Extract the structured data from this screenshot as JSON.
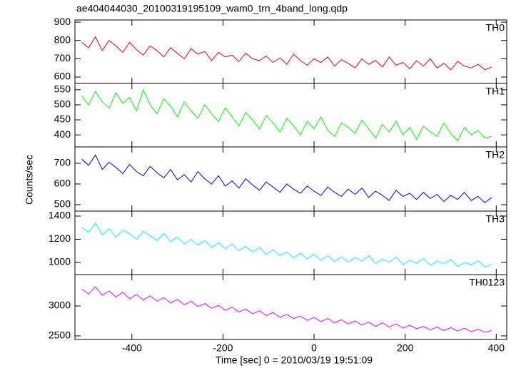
{
  "chart_data": [
    {
      "type": "line",
      "title": "ae404044030_20100319195109_wam0_trn_4band_long.qdp",
      "x": [
        -510,
        -495,
        -480,
        -465,
        -450,
        -435,
        -420,
        -405,
        -390,
        -375,
        -360,
        -345,
        -330,
        -315,
        -300,
        -285,
        -270,
        -255,
        -240,
        -225,
        -210,
        -195,
        -180,
        -165,
        -150,
        -135,
        -120,
        -105,
        -90,
        -75,
        -60,
        -45,
        -30,
        -15,
        0,
        15,
        30,
        45,
        60,
        75,
        90,
        105,
        120,
        135,
        150,
        165,
        180,
        195,
        210,
        225,
        240,
        255,
        270,
        285,
        300,
        315,
        330,
        345,
        360,
        375,
        390
      ],
      "series": [
        {
          "name": "TH0",
          "color": "#ff0000",
          "values": [
            790,
            760,
            820,
            745,
            800,
            770,
            735,
            790,
            750,
            720,
            770,
            745,
            710,
            760,
            730,
            700,
            755,
            725,
            740,
            690,
            735,
            710,
            720,
            685,
            730,
            700,
            690,
            715,
            680,
            705,
            670,
            725,
            690,
            665,
            700,
            680,
            710,
            660,
            695,
            675,
            650,
            700,
            670,
            690,
            655,
            710,
            665,
            680,
            645,
            690,
            660,
            700,
            650,
            675,
            640,
            685,
            660,
            650,
            670,
            640,
            655
          ]
        }
      ],
      "xlim": [
        -525,
        423
      ],
      "xticks": [
        -400,
        -200,
        0,
        200,
        400
      ],
      "ylim": [
        565,
        912
      ],
      "yticks": [
        600,
        700,
        800,
        900
      ]
    },
    {
      "type": "line",
      "x": [
        -510,
        -495,
        -480,
        -465,
        -450,
        -435,
        -420,
        -405,
        -390,
        -375,
        -360,
        -345,
        -330,
        -315,
        -300,
        -285,
        -270,
        -255,
        -240,
        -225,
        -210,
        -195,
        -180,
        -165,
        -150,
        -135,
        -120,
        -105,
        -90,
        -75,
        -60,
        -45,
        -30,
        -15,
        0,
        15,
        30,
        45,
        60,
        75,
        90,
        105,
        120,
        135,
        150,
        165,
        180,
        195,
        210,
        225,
        240,
        255,
        270,
        285,
        300,
        315,
        330,
        345,
        360,
        375,
        390
      ],
      "series": [
        {
          "name": "TH1",
          "color": "#00ff00",
          "values": [
            530,
            500,
            545,
            510,
            490,
            540,
            505,
            525,
            480,
            550,
            500,
            470,
            520,
            495,
            460,
            510,
            480,
            455,
            500,
            470,
            445,
            490,
            460,
            430,
            475,
            450,
            420,
            465,
            440,
            410,
            455,
            430,
            400,
            445,
            420,
            460,
            415,
            395,
            440,
            425,
            405,
            450,
            420,
            390,
            435,
            410,
            445,
            400,
            425,
            385,
            430,
            410,
            395,
            440,
            405,
            380,
            425,
            400,
            415,
            390,
            395
          ]
        }
      ],
      "xlim": [
        -525,
        423
      ],
      "xticks": [
        -400,
        -200,
        0,
        200,
        400
      ],
      "ylim": [
        360,
        571
      ],
      "yticks": [
        400,
        450,
        500,
        550
      ]
    },
    {
      "type": "line",
      "y_label": "Counts/sec",
      "x": [
        -510,
        -495,
        -480,
        -465,
        -450,
        -435,
        -420,
        -405,
        -390,
        -375,
        -360,
        -345,
        -330,
        -315,
        -300,
        -285,
        -270,
        -255,
        -240,
        -225,
        -210,
        -195,
        -180,
        -165,
        -150,
        -135,
        -120,
        -105,
        -90,
        -75,
        -60,
        -45,
        -30,
        -15,
        0,
        15,
        30,
        45,
        60,
        75,
        90,
        105,
        120,
        135,
        150,
        165,
        180,
        195,
        210,
        225,
        240,
        255,
        270,
        285,
        300,
        315,
        330,
        345,
        360,
        375,
        390
      ],
      "series": [
        {
          "name": "TH2",
          "color": "#0000ff",
          "values": [
            720,
            690,
            740,
            670,
            705,
            680,
            650,
            695,
            660,
            640,
            685,
            655,
            630,
            670,
            620,
            645,
            610,
            660,
            625,
            600,
            640,
            590,
            615,
            580,
            625,
            595,
            570,
            610,
            585,
            560,
            600,
            575,
            555,
            590,
            565,
            545,
            585,
            560,
            540,
            575,
            550,
            580,
            535,
            565,
            545,
            520,
            570,
            540,
            555,
            525,
            560,
            530,
            550,
            515,
            545,
            525,
            560,
            520,
            540,
            510,
            535
          ]
        }
      ],
      "xlim": [
        -525,
        423
      ],
      "xticks": [
        -400,
        -200,
        0,
        200,
        400
      ],
      "ylim": [
        469,
        779
      ],
      "yticks": [
        500,
        600,
        700
      ]
    },
    {
      "type": "line",
      "x": [
        -510,
        -495,
        -480,
        -465,
        -450,
        -435,
        -420,
        -405,
        -390,
        -375,
        -360,
        -345,
        -330,
        -315,
        -300,
        -285,
        -270,
        -255,
        -240,
        -225,
        -210,
        -195,
        -180,
        -165,
        -150,
        -135,
        -120,
        -105,
        -90,
        -75,
        -60,
        -45,
        -30,
        -15,
        0,
        15,
        30,
        45,
        60,
        75,
        90,
        105,
        120,
        135,
        150,
        165,
        180,
        195,
        210,
        225,
        240,
        255,
        270,
        285,
        300,
        315,
        330,
        345,
        360,
        375,
        390
      ],
      "series": [
        {
          "name": "TH3",
          "color": "#00ffff",
          "values": [
            1300,
            1260,
            1340,
            1240,
            1290,
            1220,
            1280,
            1250,
            1200,
            1270,
            1230,
            1190,
            1250,
            1180,
            1220,
            1160,
            1200,
            1150,
            1190,
            1130,
            1170,
            1120,
            1160,
            1100,
            1140,
            1090,
            1130,
            1070,
            1110,
            1060,
            1090,
            1040,
            1080,
            1030,
            1070,
            1020,
            1060,
            1010,
            1050,
            1000,
            1045,
            1010,
            1060,
            990,
            1030,
            1000,
            1050,
            980,
            1020,
            995,
            1035,
            975,
            1010,
            990,
            1025,
            965,
            1000,
            980,
            1015,
            960,
            985
          ]
        }
      ],
      "xlim": [
        -525,
        423
      ],
      "xticks": [
        -400,
        -200,
        0,
        200,
        400
      ],
      "ylim": [
        895,
        1443
      ],
      "yticks": [
        1000,
        1200,
        1400
      ]
    },
    {
      "type": "line",
      "x_label": "Time [sec] 0 = 2010/03/19 19:51:09",
      "x": [
        -510,
        -495,
        -480,
        -465,
        -450,
        -435,
        -420,
        -405,
        -390,
        -375,
        -360,
        -345,
        -330,
        -315,
        -300,
        -285,
        -270,
        -255,
        -240,
        -225,
        -210,
        -195,
        -180,
        -165,
        -150,
        -135,
        -120,
        -105,
        -90,
        -75,
        -60,
        -45,
        -30,
        -15,
        0,
        15,
        30,
        45,
        60,
        75,
        90,
        105,
        120,
        135,
        150,
        165,
        180,
        195,
        210,
        225,
        240,
        255,
        270,
        285,
        300,
        315,
        330,
        345,
        360,
        375,
        390
      ],
      "series": [
        {
          "name": "TH0123",
          "color": "#ff00ff",
          "values": [
            3280,
            3200,
            3320,
            3180,
            3250,
            3150,
            3230,
            3120,
            3190,
            3100,
            3170,
            3080,
            3140,
            3050,
            3110,
            3020,
            3080,
            2990,
            3040,
            2960,
            3010,
            2930,
            2980,
            2900,
            2950,
            2870,
            2920,
            2840,
            2890,
            2810,
            2860,
            2790,
            2830,
            2760,
            2810,
            2740,
            2790,
            2720,
            2770,
            2700,
            2750,
            2680,
            2730,
            2660,
            2720,
            2650,
            2700,
            2630,
            2680,
            2620,
            2660,
            2600,
            2650,
            2590,
            2640,
            2580,
            2630,
            2570,
            2610,
            2560,
            2590
          ]
        }
      ],
      "xlim": [
        -525,
        423
      ],
      "xticks": [
        -400,
        -200,
        0,
        200,
        400
      ],
      "ylim": [
        2440,
        3524
      ],
      "yticks": [
        2500,
        3000
      ]
    }
  ]
}
